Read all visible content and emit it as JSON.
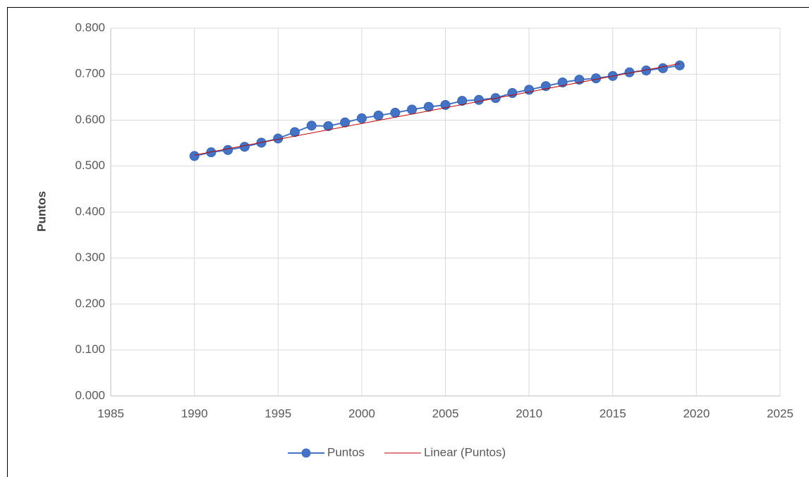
{
  "chart_data": {
    "type": "scatter",
    "y_label": "Puntos",
    "series": [
      {
        "name": "Puntos",
        "color": "#4472c4",
        "x": [
          1990,
          1991,
          1992,
          1993,
          1994,
          1995,
          1996,
          1997,
          1998,
          1999,
          2000,
          2001,
          2002,
          2003,
          2004,
          2005,
          2006,
          2007,
          2008,
          2009,
          2010,
          2011,
          2012,
          2013,
          2014,
          2015,
          2016,
          2017,
          2018,
          2019
        ],
        "values": [
          0.522,
          0.53,
          0.535,
          0.542,
          0.551,
          0.56,
          0.574,
          0.588,
          0.587,
          0.595,
          0.604,
          0.61,
          0.616,
          0.623,
          0.629,
          0.633,
          0.642,
          0.644,
          0.648,
          0.659,
          0.666,
          0.674,
          0.682,
          0.688,
          0.691,
          0.696,
          0.704,
          0.708,
          0.713,
          0.719
        ]
      },
      {
        "name": "Linear (Puntos)",
        "color": "#c00000",
        "x": [
          1990,
          2019
        ],
        "values": [
          0.524,
          0.723
        ]
      }
    ],
    "xlim": [
      1985,
      2025
    ],
    "xticks": [
      1985,
      1990,
      1995,
      2000,
      2005,
      2010,
      2015,
      2020,
      2025
    ],
    "ylim": [
      0,
      0.8
    ],
    "yticks": [
      {
        "value": 0,
        "label": "0.000"
      },
      {
        "value": 0.1,
        "label": "0.100"
      },
      {
        "value": 0.2,
        "label": "0.200"
      },
      {
        "value": 0.3,
        "label": "0.300"
      },
      {
        "value": 0.4,
        "label": "0.400"
      },
      {
        "value": 0.5,
        "label": "0.500"
      },
      {
        "value": 0.6,
        "label": "0.600"
      },
      {
        "value": 0.7,
        "label": "0.700"
      },
      {
        "value": 0.8,
        "label": "0.800"
      }
    ],
    "grid": true,
    "legend": "bottom"
  }
}
